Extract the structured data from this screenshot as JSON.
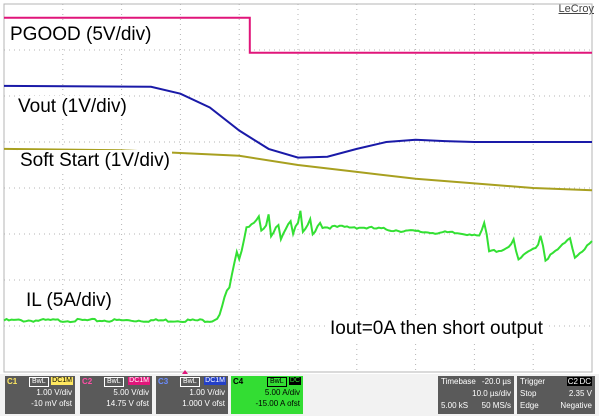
{
  "brand": "LeCroy",
  "labels": {
    "pgood": "PGOOD (5V/div)",
    "vout": "Vout (1V/div)",
    "ss": "Soft Start (1V/div)",
    "il": "IL (5A/div)",
    "note": "Iout=0A then short output"
  },
  "colors": {
    "c1": "#1a1aa8",
    "c2": "#e0157a",
    "c3": "#a8a020",
    "c4": "#33e033",
    "grid": "#b4b4b4"
  },
  "channels": [
    {
      "name": "C1",
      "bw": "BwL",
      "cpl": "DC1M",
      "vdiv": "1.00 V/div",
      "offset": "-10 mV ofst",
      "color": "#1a1aa8"
    },
    {
      "name": "C2",
      "bw": "BwL",
      "cpl": "DC1M",
      "vdiv": "5.00 V/div",
      "offset": "14.75 V ofst",
      "color": "#e0157a"
    },
    {
      "name": "C3",
      "bw": "BwL",
      "cpl": "DC1M",
      "vdiv": "1.00 V/div",
      "offset": "1.000 V ofst",
      "color": "#1a1aa8"
    },
    {
      "name": "C4",
      "bw": "BwL",
      "cpl": "DC",
      "vdiv": "5.00 A/div",
      "offset": "-15.00 A ofst",
      "color": "#33e033"
    }
  ],
  "timebase": {
    "label": "Timebase",
    "delay": "-20.0 µs",
    "tdiv": "10.0 µs/div",
    "samples": "5.00 kS",
    "rate": "50 MS/s"
  },
  "trigger": {
    "label": "Trigger",
    "src": "C2",
    "cpl": "DC",
    "mode": "Stop",
    "level": "2.35 V",
    "type": "Edge",
    "slope": "Negative"
  },
  "chart_data": {
    "type": "line",
    "x_unit": "divisions",
    "xlim": [
      0,
      10
    ],
    "ylim": [
      0,
      8
    ],
    "series": [
      {
        "name": "PGOOD (5V/div)",
        "x": [
          0,
          4.18,
          4.18,
          10
        ],
        "y": [
          7.7,
          7.7,
          6.94,
          6.94
        ]
      },
      {
        "name": "Vout (1V/div)",
        "x": [
          0,
          2.5,
          3,
          3.5,
          4,
          4.5,
          5,
          5.5,
          6,
          6.5,
          7,
          7.5,
          8,
          9,
          10
        ],
        "y": [
          6.22,
          6.2,
          6.05,
          5.75,
          5.25,
          4.85,
          4.66,
          4.68,
          4.85,
          5.0,
          5.05,
          5.02,
          5.0,
          5.0,
          5.0
        ]
      },
      {
        "name": "Soft Start (1V/div)",
        "x": [
          0,
          2,
          4,
          5,
          6,
          7,
          8,
          9,
          10
        ],
        "y": [
          4.85,
          4.82,
          4.7,
          4.5,
          4.35,
          4.2,
          4.1,
          4.0,
          3.95
        ]
      },
      {
        "name": "IL (5A/div)",
        "x": [
          0,
          3.55,
          3.65,
          3.9,
          4.2,
          4.5,
          5,
          6,
          7,
          8,
          8.5,
          9,
          10
        ],
        "y": [
          1.12,
          1.12,
          1.2,
          2.2,
          3.3,
          3.05,
          3.15,
          3.15,
          3.05,
          3.0,
          2.6,
          2.6,
          2.7
        ]
      }
    ]
  }
}
